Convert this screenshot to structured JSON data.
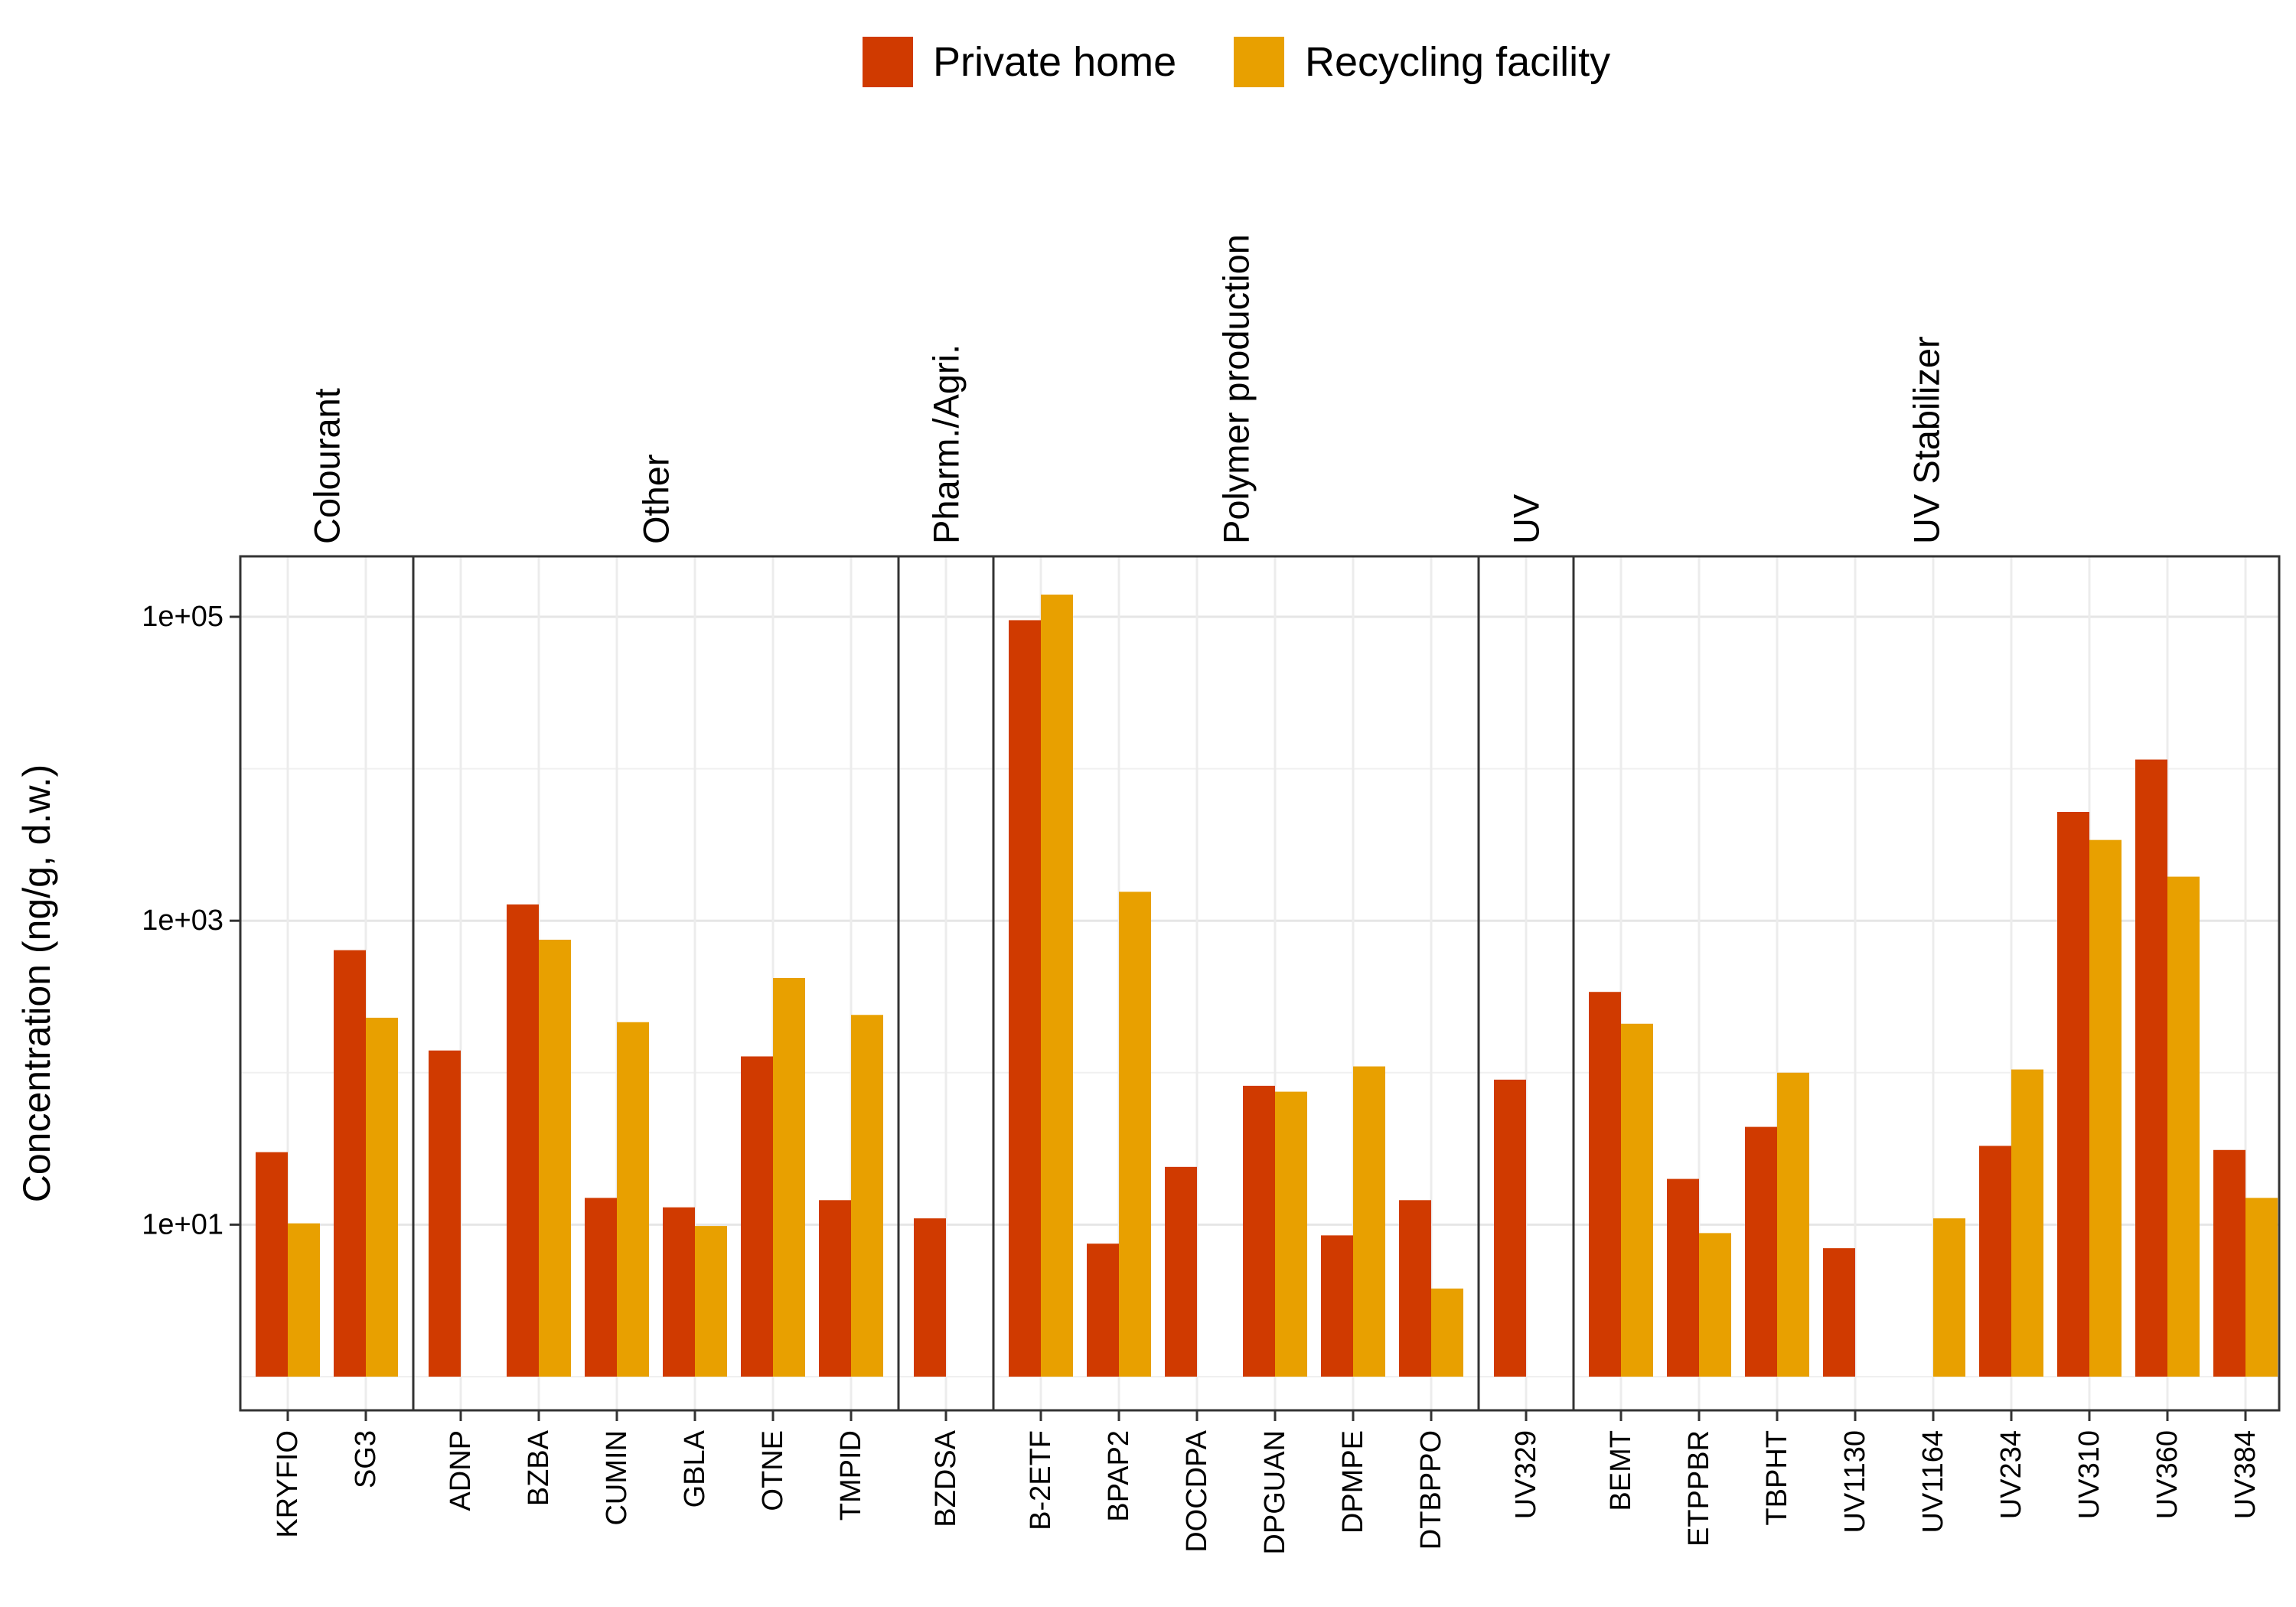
{
  "chart_data": {
    "type": "bar",
    "scale": "log10",
    "ylabel": "Concentration (ng/g, d.w.)",
    "xlabel": "",
    "title": "",
    "ylim": [
      0.6,
      250000
    ],
    "bar_baseline": 1,
    "yticks": [
      {
        "value": 10,
        "label": "1e+01"
      },
      {
        "value": 1000,
        "label": "1e+03"
      },
      {
        "value": 100000,
        "label": "1e+05"
      }
    ],
    "grid": true,
    "legend": {
      "position": "top",
      "items": [
        {
          "name": "Private home",
          "color": "#d03a00"
        },
        {
          "name": "Recycling facility",
          "color": "#e8a000"
        }
      ]
    },
    "facets": [
      {
        "label": "Colourant",
        "categories": [
          {
            "name": "KRYFIO",
            "values": [
              30,
              10.2
            ]
          },
          {
            "name": "SG3",
            "values": [
              640,
              230
            ]
          }
        ]
      },
      {
        "label": "Other",
        "categories": [
          {
            "name": "ADNP",
            "values": [
              140,
              null
            ]
          },
          {
            "name": "BZBA",
            "values": [
              1280,
              750
            ]
          },
          {
            "name": "CUMIN",
            "values": [
              15,
              215
            ]
          },
          {
            "name": "GBLA",
            "values": [
              13,
              9.8
            ]
          },
          {
            "name": "OTNE",
            "values": [
              128,
              420
            ]
          },
          {
            "name": "TMPID",
            "values": [
              14.5,
              240
            ]
          }
        ]
      },
      {
        "label": "Pharm./Agri.",
        "categories": [
          {
            "name": "BZDSA",
            "values": [
              11,
              null
            ]
          }
        ]
      },
      {
        "label": "Polymer production",
        "categories": [
          {
            "name": "B-2ETF",
            "values": [
              95000,
              140000
            ]
          },
          {
            "name": "BPAP2",
            "values": [
              7.5,
              1550
            ]
          },
          {
            "name": "DOCDPA",
            "values": [
              24,
              null
            ]
          },
          {
            "name": "DPGUAN",
            "values": [
              82,
              75
            ]
          },
          {
            "name": "DPMPE",
            "values": [
              8.5,
              110
            ]
          },
          {
            "name": "DTBPPO",
            "values": [
              14.5,
              3.8
            ]
          }
        ]
      },
      {
        "label": "UV",
        "categories": [
          {
            "name": "UV329",
            "values": [
              90,
              null
            ]
          }
        ]
      },
      {
        "label": "UV Stabilizer",
        "categories": [
          {
            "name": "BEMT",
            "values": [
              340,
              210
            ]
          },
          {
            "name": "ETPPBR",
            "values": [
              20,
              8.8
            ]
          },
          {
            "name": "TBPHT",
            "values": [
              44,
              100
            ]
          },
          {
            "name": "UV1130",
            "values": [
              7,
              null
            ]
          },
          {
            "name": "UV1164",
            "values": [
              null,
              11
            ]
          },
          {
            "name": "UV234",
            "values": [
              33,
              105
            ]
          },
          {
            "name": "UV310",
            "values": [
              5200,
              3400
            ]
          },
          {
            "name": "UV360",
            "values": [
              11500,
              1950
            ]
          },
          {
            "name": "UV384",
            "values": [
              31,
              15
            ]
          }
        ]
      }
    ]
  }
}
